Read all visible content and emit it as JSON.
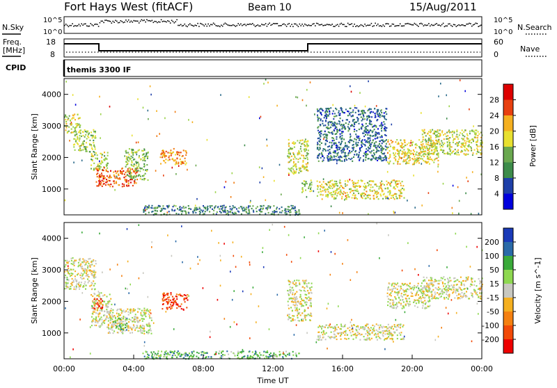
{
  "header": {
    "station": "Fort Hays West (fitACF)",
    "beam": "Beam 10",
    "date": "15/Aug/2011"
  },
  "noise_panel": {
    "left_label": "N.Sky",
    "right_label": "N.Search",
    "left_ticks": [
      "10^5",
      "10^0"
    ],
    "right_ticks": [
      "10^5",
      "10^0"
    ],
    "legend_line": "dotted"
  },
  "freq_panel": {
    "left_label_line1": "Freq.",
    "left_label_line2": "[MHz]",
    "left_ticks": [
      "18",
      "8"
    ],
    "right_label": "Nave",
    "right_ticks": [
      "60",
      "0"
    ]
  },
  "cpid_panel": {
    "label": "CPID",
    "program": "themis 3300 IF"
  },
  "chart_data": [
    {
      "type": "heatmap",
      "name": "power",
      "xlabel": "Time UT",
      "ylabel": "Slant Range [km]",
      "xlim_hours": [
        0,
        24
      ],
      "ylim": [
        180,
        4500
      ],
      "yticks": [
        1000,
        2000,
        3000,
        4000
      ],
      "colorbar": {
        "label": "Power [dB]",
        "ticks": [
          "28",
          "24",
          "20",
          "16",
          "12",
          "8",
          "4"
        ],
        "range": [
          0,
          30
        ],
        "colors": [
          "#0000dd",
          "#1e3fa8",
          "#2a6a8a",
          "#3d8c4a",
          "#6aa84f",
          "#9bd34a",
          "#e8e030",
          "#f5b020",
          "#f07a10",
          "#e84010",
          "#dd0000"
        ]
      },
      "regions": [
        {
          "t": [
            0.0,
            0.9
          ],
          "r": [
            2800,
            3400
          ],
          "level": 0.55
        },
        {
          "t": [
            0.5,
            1.8
          ],
          "r": [
            2200,
            2900
          ],
          "level": 0.5
        },
        {
          "t": [
            1.5,
            2.5
          ],
          "r": [
            1600,
            2200
          ],
          "level": 0.5
        },
        {
          "t": [
            1.8,
            4.2
          ],
          "r": [
            1100,
            1700
          ],
          "level": 0.85
        },
        {
          "t": [
            3.5,
            4.8
          ],
          "r": [
            1300,
            2300
          ],
          "level": 0.45
        },
        {
          "t": [
            5.5,
            7.0
          ],
          "r": [
            1800,
            2300
          ],
          "level": 0.75
        },
        {
          "t": [
            4.5,
            13.5
          ],
          "r": [
            200,
            500
          ],
          "level": 0.25
        },
        {
          "t": [
            12.8,
            14.0
          ],
          "r": [
            1500,
            2600
          ],
          "level": 0.55
        },
        {
          "t": [
            13.6,
            14.2
          ],
          "r": [
            900,
            1300
          ],
          "level": 0.45
        },
        {
          "t": [
            14.5,
            19.5
          ],
          "r": [
            700,
            1300
          ],
          "level": 0.6
        },
        {
          "t": [
            14.5,
            18.5
          ],
          "r": [
            1900,
            3600
          ],
          "level": 0.2
        },
        {
          "t": [
            18.5,
            21.5
          ],
          "r": [
            1800,
            2600
          ],
          "level": 0.6
        },
        {
          "t": [
            20.5,
            24.0
          ],
          "r": [
            2100,
            2900
          ],
          "level": 0.55
        }
      ]
    },
    {
      "type": "heatmap",
      "name": "velocity",
      "xlabel": "Time UT",
      "ylabel": "Slant Range [km]",
      "xlim_hours": [
        0,
        24
      ],
      "ylim": [
        180,
        4500
      ],
      "xticks": [
        "00:00",
        "04:00",
        "08:00",
        "12:00",
        "16:00",
        "20:00",
        "00:00"
      ],
      "yticks": [
        1000,
        2000,
        3000,
        4000
      ],
      "colorbar": {
        "label": "Velocity [m s^-1]",
        "ticks": [
          "200",
          "100",
          "50",
          "15",
          "-15",
          "-50",
          "-100",
          "-200"
        ],
        "range": [
          -250,
          250
        ],
        "colors": [
          "#ee0000",
          "#f24a08",
          "#f58010",
          "#f5b020",
          "#c8c8c0",
          "#8ed850",
          "#3aaa3a",
          "#2a6aa8",
          "#1a3ab8"
        ]
      },
      "regions": [
        {
          "t": [
            0.0,
            1.8
          ],
          "r": [
            2400,
            3400
          ],
          "level": 0.5
        },
        {
          "t": [
            1.5,
            2.8
          ],
          "r": [
            1200,
            2300
          ],
          "level": 0.5
        },
        {
          "t": [
            2.5,
            5.0
          ],
          "r": [
            1000,
            1800
          ],
          "level": 0.5
        },
        {
          "t": [
            2.8,
            3.6
          ],
          "r": [
            1100,
            1500
          ],
          "level": 0.68
        },
        {
          "t": [
            1.6,
            2.2
          ],
          "r": [
            1800,
            2150
          ],
          "level": 0.08
        },
        {
          "t": [
            5.6,
            7.1
          ],
          "r": [
            1750,
            2300
          ],
          "level": 0.1
        },
        {
          "t": [
            4.5,
            13.5
          ],
          "r": [
            200,
            450
          ],
          "level": 0.7
        },
        {
          "t": [
            12.8,
            14.2
          ],
          "r": [
            1400,
            2700
          ],
          "level": 0.5
        },
        {
          "t": [
            14.5,
            19.5
          ],
          "r": [
            800,
            1300
          ],
          "level": 0.5
        },
        {
          "t": [
            18.5,
            21.0
          ],
          "r": [
            1800,
            2600
          ],
          "level": 0.5
        },
        {
          "t": [
            20.5,
            24.0
          ],
          "r": [
            2100,
            2800
          ],
          "level": 0.5
        }
      ]
    }
  ]
}
